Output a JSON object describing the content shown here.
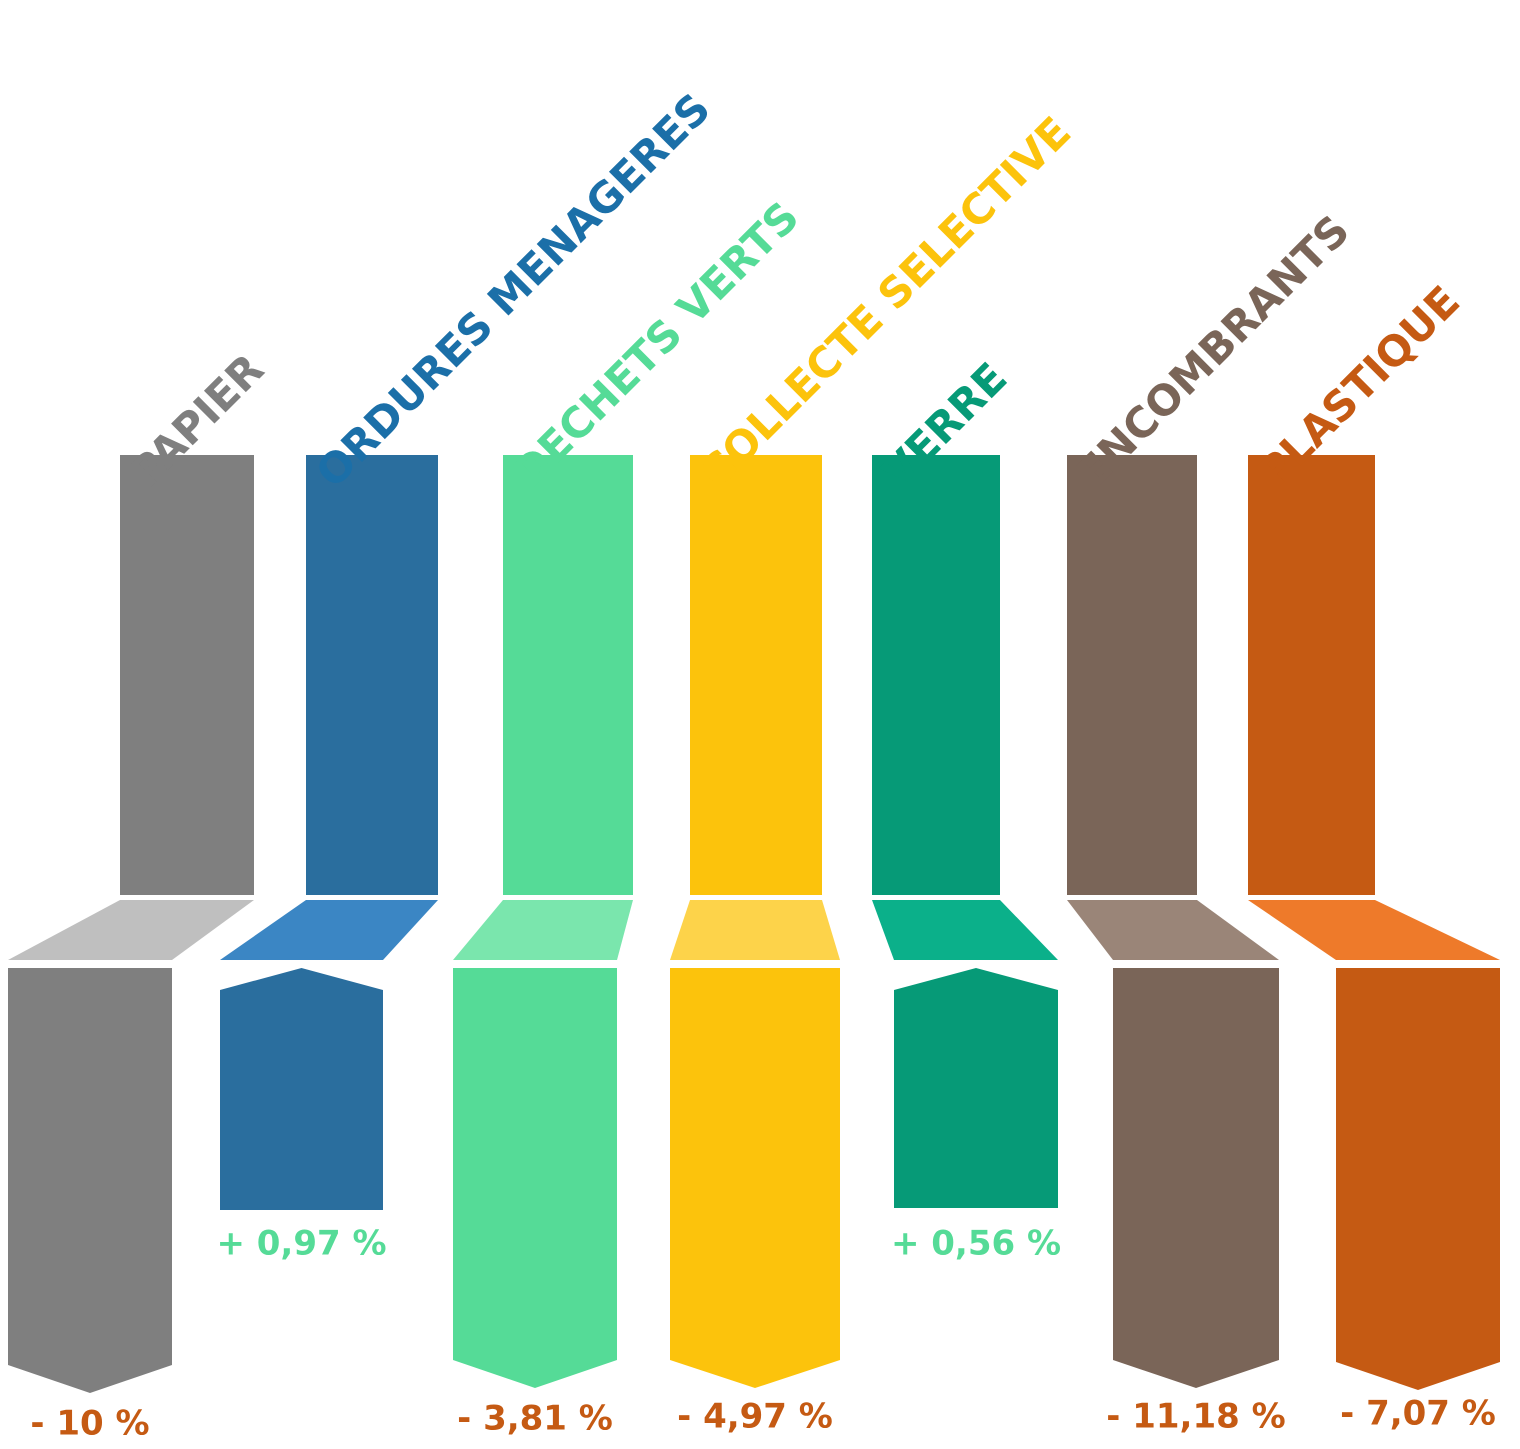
{
  "items": [
    {
      "label": "PAPIER",
      "change": "- 10 %"
    },
    {
      "label": "ORDURES MENAGERES",
      "change": "+ 0,97 %"
    },
    {
      "label": "DECHETS VERTS",
      "change": "- 3,81 %"
    },
    {
      "label": "COLLECTE SELECTIVE",
      "change": "- 4,97 %"
    },
    {
      "label": "VERRE",
      "change": "+ 0,56 %"
    },
    {
      "label": "ENCOMBRANTS",
      "change": "- 11,18 %"
    },
    {
      "label": "PLASTIQUE",
      "change": "- 7,07 %"
    }
  ]
}
